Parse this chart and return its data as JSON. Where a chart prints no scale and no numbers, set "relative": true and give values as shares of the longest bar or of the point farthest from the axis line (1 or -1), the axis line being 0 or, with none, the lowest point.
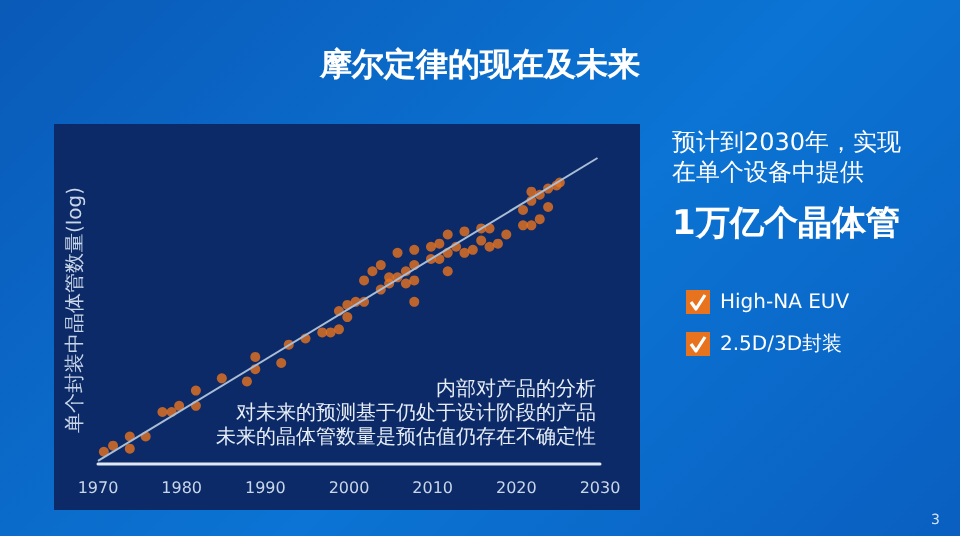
{
  "chart_data": {
    "type": "scatter",
    "title": "摩尔定律的现在及未来",
    "ylabel": "单个封装中晶体管数量(log)",
    "relative": true,
    "marker": "circle",
    "xlim": [
      1970,
      2030
    ],
    "xticks": [
      1970,
      1980,
      1990,
      2000,
      2010,
      2020,
      2030
    ],
    "series": [
      {
        "color": "#e8731e",
        "x": [
          1970.7,
          1971.8,
          1973.8,
          1973.8,
          1975.7,
          1977.7,
          1978.8,
          1979.7,
          1981.7,
          1981.7,
          1984.8,
          1987.8,
          1988.8,
          1988.8,
          1991.9,
          1992.8,
          1994.8,
          1996.8,
          1997.8,
          1998.8,
          1998.8,
          1999.8,
          1999.8,
          2000.8,
          2001.8,
          2001.8,
          2002.8,
          2003.8,
          2003.8,
          2004.8,
          2004.8,
          2005.8,
          2005.8,
          2006.8,
          2006.8,
          2007.8,
          2007.8,
          2007.8,
          2007.8,
          2009.8,
          2009.8,
          2010.8,
          2010.8,
          2011.8,
          2011.8,
          2011.8,
          2012.8,
          2013.8,
          2013.8,
          2014.8,
          2015.8,
          2015.8,
          2016.8,
          2016.8,
          2017.8,
          2018.8,
          2020.8,
          2020.8,
          2021.8,
          2021.8,
          2021.8,
          2022.8,
          2022.8,
          2023.8,
          2023.8,
          2024.8,
          2025.2
        ],
        "values": [
          0.04,
          0.06,
          0.09,
          0.05,
          0.09,
          0.17,
          0.17,
          0.19,
          0.24,
          0.19,
          0.28,
          0.27,
          0.35,
          0.31,
          0.33,
          0.39,
          0.41,
          0.43,
          0.43,
          0.44,
          0.5,
          0.52,
          0.48,
          0.53,
          0.53,
          0.6,
          0.63,
          0.65,
          0.57,
          0.59,
          0.61,
          0.61,
          0.69,
          0.63,
          0.59,
          0.6,
          0.53,
          0.65,
          0.7,
          0.71,
          0.67,
          0.72,
          0.67,
          0.69,
          0.63,
          0.75,
          0.71,
          0.76,
          0.69,
          0.7,
          0.77,
          0.73,
          0.77,
          0.71,
          0.72,
          0.75,
          0.78,
          0.83,
          0.89,
          0.86,
          0.78,
          0.88,
          0.8,
          0.84,
          0.9,
          0.91,
          0.92
        ]
      },
      {
        "type": "line",
        "color": "#a9bdd6",
        "marker": "none",
        "x": [
          1970,
          2029.7
        ],
        "values": [
          0.01,
          1
        ]
      }
    ],
    "annotations": [
      "内部对产品的分析",
      "对未来的预测基于仍处于设计阶段的产品",
      "未来的晶体管数量是预估值仍存在不确定性",
      "预计到2030年，实现",
      "在单个设备中提供",
      "1万亿个晶体管",
      "High-NA EUV",
      "2.5D/3D封装",
      "3"
    ]
  }
}
